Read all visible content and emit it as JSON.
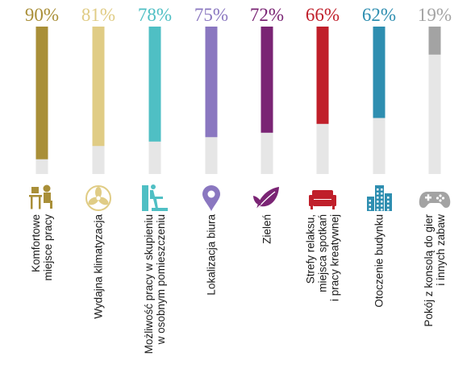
{
  "chart_data": {
    "type": "bar",
    "title": "",
    "xlabel": "",
    "ylabel": "",
    "ylim": [
      0,
      100
    ],
    "grid": false,
    "legend": "none",
    "track_color": "#e6e6e6",
    "categories": [
      {
        "label_lines": [
          "Komfortowe",
          "miejsce pracy"
        ],
        "icon": "desk-worker-icon"
      },
      {
        "label_lines": [
          "Wydajna klimatyzacja"
        ],
        "icon": "fan-icon"
      },
      {
        "label_lines": [
          "Możliwość pracy w skupieniu",
          "w osobnym pomieszczeniu"
        ],
        "icon": "private-room-icon"
      },
      {
        "label_lines": [
          "Lokalizacja biura"
        ],
        "icon": "map-pin-icon"
      },
      {
        "label_lines": [
          "Zieleń"
        ],
        "icon": "leaf-icon"
      },
      {
        "label_lines": [
          "Strefy relaksu,",
          "miejsca spotkań",
          "i pracy kreatywnej"
        ],
        "icon": "sofa-icon"
      },
      {
        "label_lines": [
          "Otoczenie budynku"
        ],
        "icon": "buildings-icon"
      },
      {
        "label_lines": [
          "Pokój z konsolą do gier",
          "i innych zabaw"
        ],
        "icon": "gamepad-icon"
      }
    ],
    "values": [
      90,
      81,
      78,
      75,
      72,
      66,
      62,
      19
    ],
    "value_labels": [
      "90%",
      "81%",
      "78%",
      "75%",
      "72%",
      "66%",
      "62%",
      "19%"
    ],
    "colors": [
      "#a98f38",
      "#e0cc85",
      "#4fbfc4",
      "#8a77c0",
      "#7a2474",
      "#c01f2a",
      "#2e8eb0",
      "#a3a3a3"
    ]
  }
}
